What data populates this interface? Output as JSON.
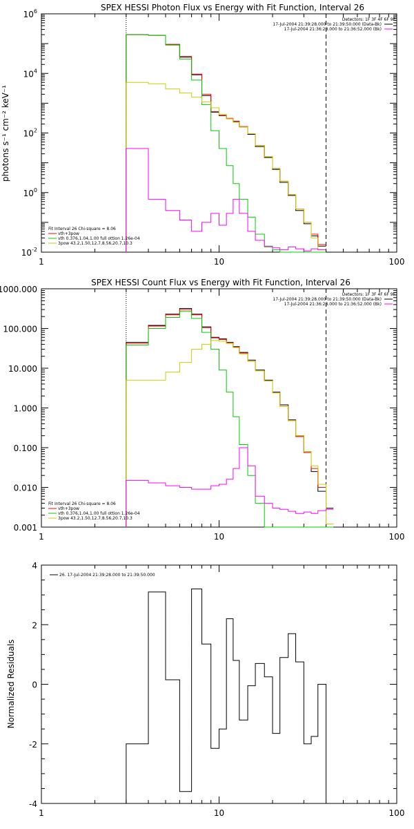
{
  "chart_data": [
    {
      "type": "line",
      "title": "SPEX HESSI Photon Flux vs Energy with Fit Function, Interval 26",
      "ylabel": "photons s⁻¹ cm⁻² keV⁻¹",
      "xlabel": "",
      "xlog": true,
      "ylog": true,
      "xlim": [
        1,
        100
      ],
      "ylim": [
        0.01,
        1000000
      ],
      "x_ticks": [
        "1",
        "10",
        "100"
      ],
      "y_ticks": [
        {
          "base": "10",
          "exp": "-2",
          "v": 0.01
        },
        {
          "base": "10",
          "exp": "0",
          "v": 1
        },
        {
          "base": "10",
          "exp": "2",
          "v": 100
        },
        {
          "base": "10",
          "exp": "4",
          "v": 10000
        },
        {
          "base": "10",
          "exp": "6",
          "v": 1000000
        }
      ],
      "vlines": [
        {
          "x": 3,
          "style": "dotted"
        },
        {
          "x": 40,
          "style": "dashed"
        }
      ],
      "legend_top": {
        "header": "Detectors: 1F 3F 4F 6F 9F",
        "entries": [
          {
            "text": "17-Jul-2004 21:39:28.000 to 21:39:50.000 (Data-Bk)",
            "color": "#000000"
          },
          {
            "text": "17-Jul-2004 21:36:28.000 to 21:36:52.000 (Bk)",
            "color": "#ff00ff"
          }
        ]
      },
      "legend_bottom": {
        "header": "Fit Interval 26   Chi-square = 8.06",
        "entries": [
          {
            "text": "vth+3pow",
            "color": "#ff0000"
          },
          {
            "text": "vth 0.376,1.04,1.00  full ottion 1.26e-04",
            "color": "#00cc00"
          },
          {
            "text": "3pow 43.2,1.50,12.7,8.56,20.7,10.3",
            "color": "#cccc00"
          }
        ]
      },
      "bin_edges": [
        3,
        4,
        5,
        6,
        7,
        8,
        9,
        10,
        11,
        12,
        13,
        14.5,
        16,
        18,
        20,
        22,
        24.5,
        27,
        30,
        33,
        36,
        40
      ],
      "series": [
        {
          "key": "data",
          "color": "#000000",
          "values": [
            200000,
            190000,
            90000,
            35000,
            9000,
            1800,
            500,
            380,
            300,
            240,
            160,
            90,
            35,
            15,
            6,
            2.2,
            0.8,
            0.25,
            0.09,
            0.035,
            0.016
          ]
        },
        {
          "key": "total",
          "color": "#ff0000",
          "values": [
            200000,
            190000,
            95000,
            37000,
            9500,
            2000,
            520,
            390,
            310,
            250,
            165,
            95,
            38,
            16,
            6.5,
            2.4,
            0.85,
            0.28,
            0.1,
            0.04,
            0.018
          ]
        },
        {
          "key": "thermal",
          "color": "#00cc00",
          "values": [
            200000,
            190000,
            90000,
            30000,
            6000,
            900,
            120,
            30,
            8,
            2,
            0.6,
            0.15,
            0.04,
            0.015,
            0.012,
            0.01,
            0.01,
            0.01,
            0.01,
            0.01,
            0.01
          ]
        },
        {
          "key": "powerlaw",
          "color": "#cccc00",
          "values": [
            5000,
            4500,
            3000,
            2200,
            1600,
            1100,
            700,
            420,
            300,
            230,
            160,
            95,
            38,
            16,
            6.5,
            2.4,
            0.85,
            0.28,
            0.1,
            0.03,
            0.012
          ]
        },
        {
          "key": "background",
          "color": "#ff00ff",
          "values": [
            30,
            0.6,
            0.25,
            0.12,
            0.05,
            0.1,
            0.2,
            0.08,
            0.2,
            0.6,
            0.2,
            0.05,
            0.025,
            0.016,
            0.014,
            0.012,
            0.015,
            0.013,
            0.011,
            0.013,
            0.012
          ]
        }
      ]
    },
    {
      "type": "line",
      "title": "SPEX HESSI Count Flux vs Energy with Fit Function, Interval 26",
      "ylabel": "",
      "xlabel": "",
      "xlog": true,
      "ylog": true,
      "xlim": [
        1,
        100
      ],
      "ylim": [
        0.001,
        1000
      ],
      "x_ticks": [
        "1",
        "10",
        "100"
      ],
      "y_ticks": [
        {
          "label": "0.001",
          "v": 0.001
        },
        {
          "label": "0.010",
          "v": 0.01
        },
        {
          "label": "0.100",
          "v": 0.1
        },
        {
          "label": "1.000",
          "v": 1
        },
        {
          "label": "10.000",
          "v": 10
        },
        {
          "label": "100.000",
          "v": 100
        },
        {
          "label": "1000.000",
          "v": 1000
        }
      ],
      "vlines": [
        {
          "x": 3,
          "style": "dotted"
        },
        {
          "x": 40,
          "style": "dashed"
        }
      ],
      "legend_top": {
        "header": "Detectors: 1F 3F 4F 6F 9F",
        "entries": [
          {
            "text": "17-Jul-2004 21:39:28.000 to 21:39:50.000 (Data-Bk)",
            "color": "#000000"
          },
          {
            "text": "17-Jul-2004 21:36:28.000 to 21:36:52.000 (Bk)",
            "color": "#ff00ff"
          }
        ]
      },
      "legend_bottom": {
        "header": "Fit Interval 26   Chi-square = 8.06",
        "entries": [
          {
            "text": "vth+3pow",
            "color": "#ff0000"
          },
          {
            "text": "vth 0.376,1.04,1.00  full ottion 1.26e-04",
            "color": "#00cc00"
          },
          {
            "text": "3pow 43.2,1.50,12.7,8.56,20.7,10.3",
            "color": "#cccc00"
          }
        ]
      },
      "bin_edges": [
        3,
        4,
        5,
        6,
        7,
        8,
        9,
        10,
        11,
        12,
        13,
        14.5,
        16,
        18,
        20,
        22,
        24.5,
        27,
        30,
        33,
        36,
        40,
        44
      ],
      "series": [
        {
          "key": "data",
          "color": "#000000",
          "values": [
            45,
            120,
            230,
            320,
            230,
            110,
            60,
            55,
            45,
            35,
            25,
            16,
            9,
            5,
            2.5,
            1.2,
            0.5,
            0.2,
            0.08,
            0.025,
            0.008,
            0.003
          ]
        },
        {
          "key": "total",
          "color": "#ff0000",
          "values": [
            42,
            115,
            220,
            300,
            220,
            105,
            58,
            53,
            44,
            34,
            24,
            15,
            8.5,
            4.8,
            2.4,
            1.1,
            0.48,
            0.19,
            0.075,
            0.03,
            0.01,
            0.0012
          ]
        },
        {
          "key": "thermal",
          "color": "#00cc00",
          "values": [
            38,
            100,
            190,
            270,
            180,
            80,
            30,
            9,
            2.5,
            0.6,
            0.12,
            0.02,
            0.004,
            0.001,
            0.001,
            0.001,
            0.001,
            0.001,
            0.001,
            0.001,
            0.001,
            0.001
          ]
        },
        {
          "key": "powerlaw",
          "color": "#cccc00",
          "values": [
            5,
            5,
            8,
            14,
            30,
            40,
            50,
            48,
            42,
            33,
            23,
            15,
            8.5,
            4.8,
            2.4,
            1.1,
            0.48,
            0.2,
            0.08,
            0.035,
            0.012,
            0.0012
          ]
        },
        {
          "key": "background",
          "color": "#ff00ff",
          "values": [
            0.015,
            0.013,
            0.011,
            0.01,
            0.009,
            0.009,
            0.011,
            0.012,
            0.016,
            0.03,
            0.1,
            0.035,
            0.006,
            0.004,
            0.003,
            0.0028,
            0.0025,
            0.0022,
            0.0024,
            0.0022,
            0.0026,
            0.0028
          ]
        }
      ]
    },
    {
      "type": "line",
      "title": "",
      "ylabel": "Normalized Residuals",
      "xlabel": "",
      "xlog": true,
      "ylog": false,
      "xlim": [
        1,
        100
      ],
      "ylim": [
        -4,
        4
      ],
      "x_ticks": [
        "1",
        "10",
        "100"
      ],
      "y_ticks": [
        {
          "label": "-4",
          "v": -4
        },
        {
          "label": "-2",
          "v": -2
        },
        {
          "label": "0",
          "v": 0
        },
        {
          "label": "2",
          "v": 2
        },
        {
          "label": "4",
          "v": 4
        }
      ],
      "legend": {
        "text": "26. 17-Jul-2004 21:39:28.000 to 21:39:50.000",
        "color": "#000000"
      },
      "bin_edges": [
        3,
        4,
        5,
        6,
        7,
        8,
        9,
        10,
        11,
        12,
        13,
        14.5,
        16,
        18,
        20,
        22,
        24.5,
        27,
        30,
        33,
        36,
        40
      ],
      "series": [
        {
          "key": "residuals",
          "color": "#000000",
          "values": [
            -2.0,
            3.1,
            0.15,
            -3.6,
            3.2,
            1.35,
            -2.15,
            -1.5,
            2.2,
            0.8,
            -1.2,
            -0.05,
            0.7,
            0.25,
            -1.65,
            0.9,
            1.7,
            0.75,
            -2.0,
            -1.75,
            0.0
          ]
        }
      ]
    }
  ]
}
